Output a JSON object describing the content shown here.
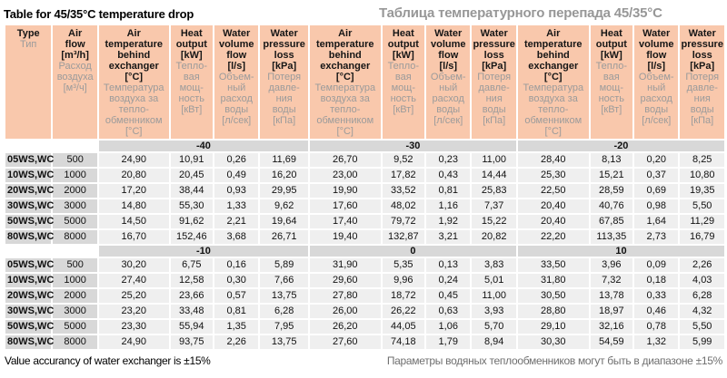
{
  "page": {
    "title_en": "Table for 45/35°C temperature drop",
    "title_ru": "Таблица температурного перепада 45/35°C",
    "footer_en": "Value accurancy of water exchanger is ±15%",
    "footer_ru": "Параметры водяных теплообменников могут быть в диапазоне ±15%"
  },
  "colors": {
    "header_salmon": "#F9C8AC",
    "gray_cell": "#D8D8D8",
    "light_cell": "#EFEFEF",
    "russian_text_gray": "#9B9B9B",
    "title_ru_gray": "#979797",
    "footer_ru_gray": "#6F6F6F"
  },
  "table": {
    "columns": {
      "type": {
        "en": "Type",
        "ru": "Тип"
      },
      "air_flow": {
        "en": "Air\nflow\n[m³/h]",
        "ru": "Расход\nвоздуха\n[м³/ч]"
      },
      "group_columns": [
        {
          "en": "Air\ntemperature\nbehind\nexchanger\n[°C]",
          "ru": "Температура\nвоздуха за\nтепло-\nобменником\n[°C]"
        },
        {
          "en": "Heat\noutput\n[kW]",
          "ru": "Тепло-\nвая\nмощ-\nность\n[кВт]"
        },
        {
          "en": "Water\nvolume\nflow\n[l/s]",
          "ru": "Объем-\nный\nрасход\nводы\n[л/сек]"
        },
        {
          "en": "Water\npressure\nloss\n[kPa]",
          "ru": "Потеря\nдавле-\nния\nводы\n[кПа]"
        }
      ]
    },
    "sections": [
      {
        "bands": [
          "-40",
          "-30",
          "-20"
        ],
        "rows": [
          {
            "type": "05WS,WC",
            "air_flow": "500",
            "values": [
              "24,90",
              "10,91",
              "0,26",
              "11,69",
              "26,70",
              "9,52",
              "0,23",
              "11,00",
              "28,40",
              "8,13",
              "0,20",
              "8,25"
            ]
          },
          {
            "type": "10WS,WC",
            "air_flow": "1000",
            "values": [
              "20,80",
              "20,45",
              "0,49",
              "16,20",
              "23,00",
              "17,82",
              "0,43",
              "14,44",
              "25,30",
              "15,21",
              "0,37",
              "10,80"
            ]
          },
          {
            "type": "20WS,WC",
            "air_flow": "2000",
            "values": [
              "17,20",
              "38,44",
              "0,93",
              "29,95",
              "19,90",
              "33,52",
              "0,81",
              "25,83",
              "22,50",
              "28,59",
              "0,69",
              "19,35"
            ]
          },
          {
            "type": "30WS,WC",
            "air_flow": "3000",
            "values": [
              "14,80",
              "55,30",
              "1,33",
              "9,62",
              "17,60",
              "48,02",
              "1,16",
              "7,37",
              "20,40",
              "40,76",
              "0,98",
              "5,50"
            ]
          },
          {
            "type": "50WS,WC",
            "air_flow": "5000",
            "values": [
              "14,50",
              "91,62",
              "2,21",
              "19,64",
              "17,40",
              "79,72",
              "1,92",
              "15,22",
              "20,40",
              "67,85",
              "1,64",
              "11,29"
            ]
          },
          {
            "type": "80WS,WC",
            "air_flow": "8000",
            "values": [
              "16,70",
              "152,46",
              "3,68",
              "26,71",
              "19,40",
              "132,87",
              "3,21",
              "20,82",
              "22,20",
              "113,35",
              "2,73",
              "16,79"
            ]
          }
        ]
      },
      {
        "bands": [
          "-10",
          "0",
          "10"
        ],
        "rows": [
          {
            "type": "05WS,WC",
            "air_flow": "500",
            "values": [
              "30,20",
              "6,75",
              "0,16",
              "5,89",
              "31,90",
              "5,35",
              "0,13",
              "3,83",
              "33,50",
              "3,96",
              "0,09",
              "2,26"
            ]
          },
          {
            "type": "10WS,WC",
            "air_flow": "1000",
            "values": [
              "27,40",
              "12,58",
              "0,30",
              "7,66",
              "29,60",
              "9,96",
              "0,24",
              "5,01",
              "31,80",
              "7,32",
              "0,18",
              "4,03"
            ]
          },
          {
            "type": "20WS,WC",
            "air_flow": "2000",
            "values": [
              "25,20",
              "23,66",
              "0,57",
              "13,75",
              "27,80",
              "18,72",
              "0,45",
              "11,00",
              "30,50",
              "13,78",
              "0,33",
              "6,28"
            ]
          },
          {
            "type": "30WS,WC",
            "air_flow": "3000",
            "values": [
              "23,20",
              "33,48",
              "0,81",
              "6,28",
              "26,00",
              "26,22",
              "0,63",
              "3,93",
              "28,80",
              "18,97",
              "0,46",
              "4,32"
            ]
          },
          {
            "type": "50WS,WC",
            "air_flow": "5000",
            "values": [
              "23,30",
              "55,94",
              "1,35",
              "7,95",
              "26,20",
              "44,05",
              "1,06",
              "5,70",
              "29,10",
              "32,16",
              "0,78",
              "5,50"
            ]
          },
          {
            "type": "80WS,WC",
            "air_flow": "8000",
            "values": [
              "24,90",
              "93,75",
              "2,26",
              "13,75",
              "27,60",
              "74,18",
              "1,79",
              "8,94",
              "30,30",
              "54,59",
              "1,32",
              "5,99"
            ]
          }
        ]
      }
    ]
  }
}
